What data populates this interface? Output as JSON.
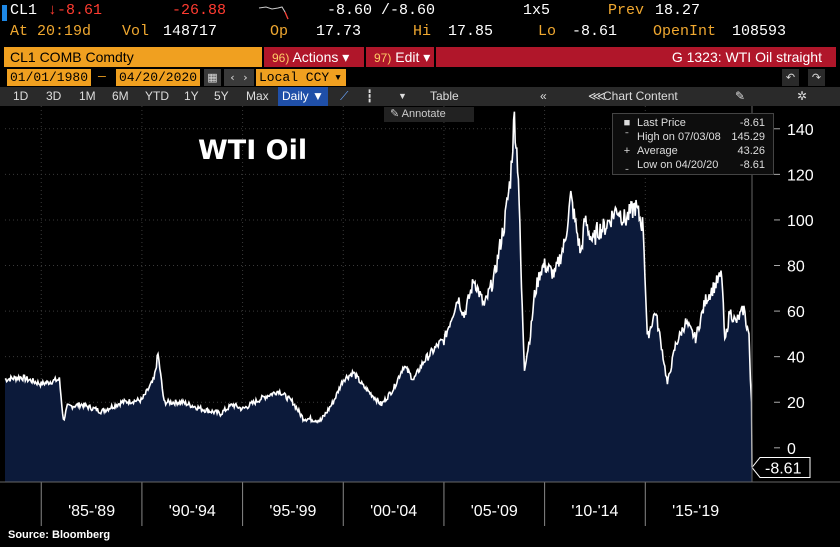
{
  "quote": {
    "ticker": "CL1",
    "last": "↓-8.61",
    "change": "-26.88",
    "bid_ask": "-8.60 /-8.60",
    "size": "1x5",
    "prev_label": "Prev",
    "prev": "18.27",
    "at": "At 20:19d",
    "vol_label": "Vol",
    "vol": "148717",
    "op_label": "Op",
    "op": "17.73",
    "hi_label": "Hi",
    "hi": "17.85",
    "lo_label": "Lo",
    "lo": "-8.61",
    "oi_label": "OpenInt",
    "oi": "108593"
  },
  "security": "CL1 COMB Comdty",
  "actions": {
    "num": "96)",
    "label": "Actions ▾"
  },
  "edit": {
    "num": "97)",
    "label": "Edit ▾"
  },
  "chart_name": "G 1323: WTI Oil straight",
  "date_from": "01/01/1980",
  "date_to": "04/20/2020",
  "currency": "Local CCY",
  "periods": [
    "1D",
    "3D",
    "1M",
    "6M",
    "YTD",
    "1Y",
    "5Y",
    "Max"
  ],
  "frequency": "Daily ▼",
  "toolbar": {
    "table": "Table",
    "chart_content": "Chart Content"
  },
  "annotate": "Annotate",
  "legend": [
    {
      "key": "Last Price",
      "value": "-8.61"
    },
    {
      "key": "High on 07/03/08",
      "value": "145.29"
    },
    {
      "key": "Average",
      "value": "43.26"
    },
    {
      "key": "Low on 04/20/20",
      "value": "-8.61"
    }
  ],
  "last_tag": "-8.61",
  "source": "Source: Bloomberg",
  "colors": {
    "area": "#0c1a3a",
    "line": "#ffffff",
    "accent": "#f0a020",
    "red": "#b0162a"
  },
  "chart_data": {
    "type": "area",
    "title": "WTI Oil",
    "ylim": [
      -15,
      150
    ],
    "yticks": [
      0,
      20,
      40,
      60,
      80,
      100,
      120,
      140
    ],
    "x_tick_labels": [
      "'85-'89",
      "'90-'94",
      "'95-'99",
      "'00-'04",
      "'05-'09",
      "'10-'14",
      "'15-'19"
    ],
    "grid": true,
    "legend_position": "top-right",
    "x": [
      1983.2,
      1984,
      1985,
      1985.9,
      1986.1,
      1986.3,
      1987,
      1988,
      1989,
      1990.0,
      1990.6,
      1990.8,
      1991.1,
      1992,
      1993,
      1993.9,
      1994.5,
      1995,
      1996,
      1996.8,
      1997.5,
      1998,
      1998.9,
      1999.5,
      2000,
      2000.5,
      2001,
      2001.9,
      2002.5,
      2003,
      2003.5,
      2004,
      2004.8,
      2005,
      2005.7,
      2006,
      2006.5,
      2007,
      2007.5,
      2007.9,
      2008.0,
      2008.3,
      2008.5,
      2008.7,
      2008.85,
      2009.0,
      2009.3,
      2009.5,
      2009.8,
      2010,
      2010.5,
      2011.0,
      2011.3,
      2011.8,
      2012.0,
      2012.4,
      2012.6,
      2013,
      2013.6,
      2014,
      2014.5,
      2014.9,
      2015.1,
      2015.5,
      2015.8,
      2016.1,
      2016.5,
      2017,
      2017.5,
      2018,
      2018.8,
      2018.95,
      2019.2,
      2019.5,
      2019.9,
      2020.0,
      2020.15,
      2020.22,
      2020.28,
      2020.3
    ],
    "y": [
      30,
      31,
      28,
      30,
      12,
      18,
      19,
      16,
      20,
      21,
      30,
      41,
      20,
      20,
      17,
      15,
      19,
      17,
      22,
      25,
      20,
      13,
      12,
      20,
      30,
      33,
      27,
      19,
      26,
      36,
      30,
      38,
      46,
      47,
      66,
      58,
      74,
      62,
      75,
      94,
      98,
      118,
      145.29,
      120,
      70,
      35,
      50,
      67,
      78,
      80,
      76,
      90,
      110,
      85,
      100,
      90,
      95,
      97,
      105,
      100,
      106,
      97,
      48,
      60,
      45,
      28,
      45,
      55,
      48,
      65,
      76,
      46,
      60,
      55,
      61,
      55,
      50,
      30,
      20,
      -8.61
    ]
  }
}
